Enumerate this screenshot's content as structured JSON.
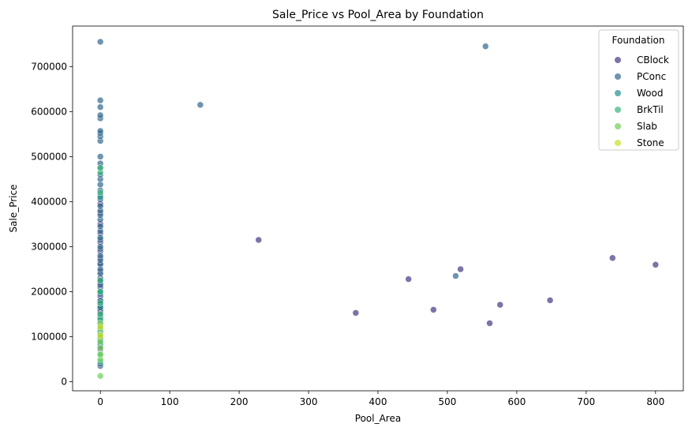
{
  "chart_data": {
    "type": "scatter",
    "title": "Sale_Price vs Pool_Area by Foundation",
    "xlabel": "Pool_Area",
    "ylabel": "Sale_Price",
    "xlim": [
      -40,
      840
    ],
    "ylim": [
      -20000,
      790000
    ],
    "xticks": [
      0,
      100,
      200,
      300,
      400,
      500,
      600,
      700,
      800
    ],
    "yticks": [
      0,
      100000,
      200000,
      300000,
      400000,
      500000,
      600000,
      700000
    ],
    "grid": false,
    "point_opacity": 0.7,
    "legend": {
      "title": "Foundation",
      "placement": "top-right"
    },
    "series": [
      {
        "name": "CBlock",
        "color": "#443983",
        "points": [
          [
            0,
            72000
          ],
          [
            0,
            80000
          ],
          [
            0,
            88000
          ],
          [
            0,
            95000
          ],
          [
            0,
            100000
          ],
          [
            0,
            104000
          ],
          [
            0,
            108000
          ],
          [
            0,
            112000
          ],
          [
            0,
            116000
          ],
          [
            0,
            120000
          ],
          [
            0,
            124000
          ],
          [
            0,
            128000
          ],
          [
            0,
            132000
          ],
          [
            0,
            136000
          ],
          [
            0,
            140000
          ],
          [
            0,
            145000
          ],
          [
            0,
            150000
          ],
          [
            0,
            155000
          ],
          [
            0,
            160000
          ],
          [
            0,
            165000
          ],
          [
            0,
            170000
          ],
          [
            0,
            175000
          ],
          [
            0,
            180000
          ],
          [
            0,
            190000
          ],
          [
            0,
            200000
          ],
          [
            0,
            210000
          ],
          [
            0,
            220000
          ],
          [
            0,
            230000
          ],
          [
            0,
            245000
          ],
          [
            0,
            260000
          ],
          [
            0,
            275000
          ],
          [
            0,
            290000
          ],
          [
            0,
            310000
          ],
          [
            0,
            330000
          ],
          [
            0,
            350000
          ],
          [
            0,
            375000
          ],
          [
            0,
            395000
          ],
          [
            228,
            315000
          ],
          [
            368,
            153000
          ],
          [
            444,
            228000
          ],
          [
            480,
            160000
          ],
          [
            519,
            250000
          ],
          [
            561,
            130000
          ],
          [
            576,
            171000
          ],
          [
            648,
            181000
          ],
          [
            738,
            275000
          ],
          [
            800,
            260000
          ]
        ]
      },
      {
        "name": "PConc",
        "color": "#31688e",
        "points": [
          [
            0,
            35000
          ],
          [
            0,
            40000
          ],
          [
            0,
            180000
          ],
          [
            0,
            195000
          ],
          [
            0,
            215000
          ],
          [
            0,
            225000
          ],
          [
            0,
            240000
          ],
          [
            0,
            250000
          ],
          [
            0,
            262000
          ],
          [
            0,
            270000
          ],
          [
            0,
            280000
          ],
          [
            0,
            295000
          ],
          [
            0,
            300000
          ],
          [
            0,
            315000
          ],
          [
            0,
            320000
          ],
          [
            0,
            335000
          ],
          [
            0,
            345000
          ],
          [
            0,
            360000
          ],
          [
            0,
            370000
          ],
          [
            0,
            380000
          ],
          [
            0,
            390000
          ],
          [
            0,
            405000
          ],
          [
            0,
            415000
          ],
          [
            0,
            425000
          ],
          [
            0,
            438000
          ],
          [
            0,
            450000
          ],
          [
            0,
            460000
          ],
          [
            0,
            475000
          ],
          [
            0,
            485000
          ],
          [
            0,
            500000
          ],
          [
            0,
            535000
          ],
          [
            0,
            545000
          ],
          [
            0,
            552000
          ],
          [
            0,
            557000
          ],
          [
            0,
            585000
          ],
          [
            0,
            592000
          ],
          [
            0,
            610000
          ],
          [
            0,
            625000
          ],
          [
            0,
            755000
          ],
          [
            144,
            615000
          ],
          [
            512,
            235000
          ],
          [
            555,
            745000
          ]
        ]
      },
      {
        "name": "Wood",
        "color": "#21908d",
        "points": [
          [
            0,
            143000
          ],
          [
            0,
            165000
          ],
          [
            0,
            200000
          ],
          [
            0,
            410000
          ]
        ]
      },
      {
        "name": "BrkTil",
        "color": "#35b779",
        "points": [
          [
            0,
            45000
          ],
          [
            0,
            62000
          ],
          [
            0,
            85000
          ],
          [
            0,
            98000
          ],
          [
            0,
            112000
          ],
          [
            0,
            125000
          ],
          [
            0,
            138000
          ],
          [
            0,
            150000
          ],
          [
            0,
            175000
          ],
          [
            0,
            200000
          ],
          [
            0,
            225000
          ],
          [
            0,
            420000
          ],
          [
            0,
            465000
          ],
          [
            0,
            475000
          ]
        ]
      },
      {
        "name": "Slab",
        "color": "#6ece58",
        "points": [
          [
            0,
            13000
          ],
          [
            0,
            50000
          ],
          [
            0,
            60000
          ],
          [
            0,
            75000
          ],
          [
            0,
            90000
          ],
          [
            0,
            105000
          ],
          [
            0,
            118000
          ],
          [
            0,
            130000
          ]
        ]
      },
      {
        "name": "Stone",
        "color": "#c8e020",
        "points": [
          [
            0,
            102000
          ],
          [
            0,
            122000
          ]
        ]
      }
    ]
  }
}
